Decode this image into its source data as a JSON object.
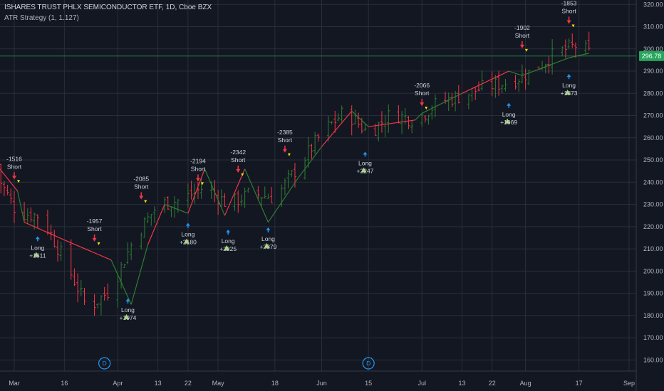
{
  "header": {
    "title": "ISHARES TRUST PHLX SEMICONDUCTOR ETF, 1D, Cboe BZX",
    "strategy": "ATR Strategy (1, 1.127)"
  },
  "colors": {
    "background": "#131722",
    "grid": "#2a2e39",
    "up": "#2e7d32",
    "down": "#f23645",
    "long_arrow": "#2196f3",
    "long_triangle": "#a5d66f",
    "short_triangle": "#f5e10a",
    "price_line": "#26a65b",
    "event": "#2196f3"
  },
  "chart_data": {
    "type": "candlestick",
    "symbol": "ISHARES TRUST PHLX SEMICONDUCTOR ETF",
    "interval": "1D",
    "exchange": "Cboe BZX",
    "ylim": [
      155,
      322
    ],
    "y_ticks": [
      "160.00",
      "170.00",
      "180.00",
      "190.00",
      "200.00",
      "210.00",
      "220.00",
      "230.00",
      "240.00",
      "250.00",
      "260.00",
      "270.00",
      "280.00",
      "290.00",
      "300.00",
      "310.00",
      "320.00"
    ],
    "x_labels": [
      {
        "date": "2024-03-01",
        "label": "Mar"
      },
      {
        "date": "2024-03-16",
        "label": "16"
      },
      {
        "date": "2024-04-01",
        "label": "Apr"
      },
      {
        "date": "2024-04-13",
        "label": "13"
      },
      {
        "date": "2024-04-22",
        "label": "22"
      },
      {
        "date": "2024-05-01",
        "label": "May"
      },
      {
        "date": "2024-05-18",
        "label": "18"
      },
      {
        "date": "2024-06-01",
        "label": "Jun"
      },
      {
        "date": "2024-06-15",
        "label": "15"
      },
      {
        "date": "2024-07-01",
        "label": "Jul"
      },
      {
        "date": "2024-07-13",
        "label": "13"
      },
      {
        "date": "2024-07-22",
        "label": "22"
      },
      {
        "date": "2024-08-01",
        "label": "Aug"
      },
      {
        "date": "2024-08-17",
        "label": "17"
      },
      {
        "date": "2024-09-01",
        "label": "Sep"
      }
    ],
    "last_price": 296.78,
    "close_path": [
      [
        "2024-02-23",
        248
      ],
      [
        "2024-03-02",
        226
      ],
      [
        "2024-03-09",
        225
      ],
      [
        "2024-03-16",
        205
      ],
      [
        "2024-03-23",
        183
      ],
      [
        "2024-03-30",
        192
      ],
      [
        "2024-04-06",
        215
      ],
      [
        "2024-04-13",
        230
      ],
      [
        "2024-04-20",
        232
      ],
      [
        "2024-04-27",
        238
      ],
      [
        "2024-05-04",
        230
      ],
      [
        "2024-05-11",
        235
      ],
      [
        "2024-05-18",
        233
      ],
      [
        "2024-05-25",
        247
      ],
      [
        "2024-06-01",
        262
      ],
      [
        "2024-06-08",
        272
      ],
      [
        "2024-06-15",
        262
      ],
      [
        "2024-06-22",
        271
      ],
      [
        "2024-06-29",
        268
      ],
      [
        "2024-07-06",
        276
      ],
      [
        "2024-07-13",
        279
      ],
      [
        "2024-07-20",
        283
      ],
      [
        "2024-07-27",
        285
      ],
      [
        "2024-08-03",
        290
      ],
      [
        "2024-08-10",
        298
      ],
      [
        "2024-08-17",
        302
      ],
      [
        "2024-08-20",
        298
      ]
    ],
    "atr_stop": [
      [
        "2024-02-23",
        251,
        "down"
      ],
      [
        "2024-03-02",
        236,
        "down"
      ],
      [
        "2024-03-04",
        222,
        "up"
      ],
      [
        "2024-03-16",
        214,
        "down"
      ],
      [
        "2024-03-30",
        205,
        "down"
      ],
      [
        "2024-04-05",
        185,
        "up"
      ],
      [
        "2024-04-10",
        212,
        "up"
      ],
      [
        "2024-04-15",
        230,
        "down"
      ],
      [
        "2024-04-22",
        226,
        "up"
      ],
      [
        "2024-04-27",
        246,
        "down"
      ],
      [
        "2024-05-03",
        225,
        "up"
      ],
      [
        "2024-05-09",
        246,
        "down"
      ],
      [
        "2024-05-16",
        222,
        "up"
      ],
      [
        "2024-05-25",
        242,
        "up"
      ],
      [
        "2024-06-01",
        256,
        "up"
      ],
      [
        "2024-06-10",
        272,
        "down"
      ],
      [
        "2024-06-15",
        265,
        "up"
      ],
      [
        "2024-06-29",
        268,
        "down"
      ],
      [
        "2024-07-01",
        271,
        "up"
      ],
      [
        "2024-07-13",
        280,
        "up"
      ],
      [
        "2024-07-27",
        290,
        "down"
      ],
      [
        "2024-07-31",
        288,
        "up"
      ],
      [
        "2024-08-14",
        296,
        "up"
      ],
      [
        "2024-08-20",
        298,
        "up"
      ]
    ],
    "trades": [
      {
        "type": "Short",
        "value": "-1516",
        "date": "2024-03-01",
        "price": 240
      },
      {
        "type": "Long",
        "value": "+1811",
        "date": "2024-03-08",
        "price": 216
      },
      {
        "type": "Short",
        "value": "-1957",
        "date": "2024-03-25",
        "price": 212
      },
      {
        "type": "Long",
        "value": "+1974",
        "date": "2024-04-04",
        "price": 188
      },
      {
        "type": "Short",
        "value": "-2085",
        "date": "2024-04-08",
        "price": 231
      },
      {
        "type": "Long",
        "value": "+2180",
        "date": "2024-04-22",
        "price": 222
      },
      {
        "type": "Short",
        "value": "-2194",
        "date": "2024-04-25",
        "price": 239
      },
      {
        "type": "Long",
        "value": "+2225",
        "date": "2024-05-04",
        "price": 219
      },
      {
        "type": "Short",
        "value": "-2342",
        "date": "2024-05-07",
        "price": 243
      },
      {
        "type": "Long",
        "value": "+2379",
        "date": "2024-05-16",
        "price": 220
      },
      {
        "type": "Short",
        "value": "-2385",
        "date": "2024-05-21",
        "price": 252
      },
      {
        "type": "Long",
        "value": "+2247",
        "date": "2024-06-14",
        "price": 254
      },
      {
        "type": "Short",
        "value": "-2066",
        "date": "2024-07-01",
        "price": 273
      },
      {
        "type": "Long",
        "value": "+1969",
        "date": "2024-07-27",
        "price": 276
      },
      {
        "type": "Short",
        "value": "-1902",
        "date": "2024-07-31",
        "price": 299
      },
      {
        "type": "Long",
        "value": "+1873",
        "date": "2024-08-14",
        "price": 289
      },
      {
        "type": "Short",
        "value": "-1853",
        "date": "2024-08-14",
        "price": 310
      }
    ],
    "events": [
      {
        "label": "D",
        "date": "2024-03-28"
      },
      {
        "label": "D",
        "date": "2024-06-15"
      }
    ],
    "grid": true
  }
}
